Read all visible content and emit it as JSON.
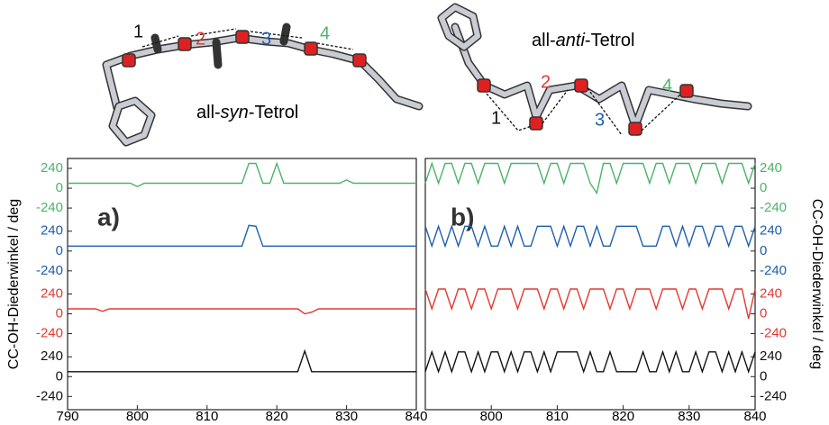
{
  "chart_data": [
    {
      "type": "line",
      "panel_label": "a)",
      "title": [
        "all-",
        "syn",
        "-Tetrol"
      ],
      "ylabel": "CC-OH-Diederwinkel / deg",
      "xlim": [
        790,
        840
      ],
      "xticks": [
        790,
        800,
        810,
        820,
        830,
        840
      ],
      "ylim": [
        -400,
        360
      ],
      "yticks": [
        -240,
        0,
        240
      ],
      "x": [
        790,
        791,
        792,
        793,
        794,
        795,
        796,
        797,
        798,
        799,
        800,
        801,
        802,
        803,
        804,
        805,
        806,
        807,
        808,
        809,
        810,
        811,
        812,
        813,
        814,
        815,
        816,
        817,
        818,
        819,
        820,
        821,
        822,
        823,
        824,
        825,
        826,
        827,
        828,
        829,
        830,
        831,
        832,
        833,
        834,
        835,
        836,
        837,
        838,
        839,
        840
      ],
      "series": [
        {
          "name": "1",
          "color": "#111111",
          "values": [
            60,
            60,
            60,
            60,
            60,
            60,
            60,
            60,
            60,
            60,
            60,
            60,
            60,
            60,
            60,
            60,
            60,
            60,
            60,
            60,
            60,
            60,
            60,
            60,
            60,
            60,
            60,
            60,
            60,
            60,
            60,
            60,
            60,
            60,
            310,
            60,
            60,
            60,
            60,
            60,
            60,
            60,
            60,
            60,
            60,
            60,
            60,
            60,
            60,
            60,
            60
          ]
        },
        {
          "name": "2",
          "color": "#e23a30",
          "values": [
            60,
            60,
            60,
            60,
            60,
            30,
            60,
            60,
            60,
            60,
            60,
            60,
            60,
            60,
            60,
            60,
            60,
            60,
            60,
            60,
            60,
            60,
            60,
            60,
            60,
            60,
            60,
            60,
            60,
            60,
            60,
            60,
            60,
            60,
            0,
            20,
            60,
            60,
            60,
            60,
            60,
            60,
            60,
            60,
            60,
            60,
            60,
            60,
            60,
            60,
            60
          ]
        },
        {
          "name": "3",
          "color": "#1f5fae",
          "values": [
            60,
            60,
            60,
            60,
            60,
            60,
            60,
            60,
            60,
            60,
            60,
            60,
            60,
            60,
            60,
            60,
            60,
            60,
            60,
            60,
            60,
            60,
            60,
            60,
            60,
            60,
            310,
            300,
            60,
            60,
            60,
            60,
            60,
            60,
            60,
            60,
            60,
            60,
            60,
            60,
            60,
            60,
            60,
            60,
            60,
            60,
            60,
            60,
            60,
            60,
            60
          ]
        },
        {
          "name": "4",
          "color": "#4cb46a",
          "values": [
            60,
            60,
            60,
            60,
            60,
            60,
            60,
            60,
            60,
            60,
            20,
            60,
            60,
            60,
            60,
            60,
            60,
            60,
            60,
            60,
            60,
            60,
            60,
            60,
            60,
            60,
            300,
            300,
            60,
            60,
            300,
            60,
            60,
            60,
            60,
            60,
            60,
            60,
            60,
            60,
            100,
            60,
            60,
            60,
            60,
            60,
            60,
            60,
            60,
            60,
            60
          ]
        }
      ]
    },
    {
      "type": "line",
      "panel_label": "b)",
      "title": [
        "all-",
        "anti",
        "-Tetrol"
      ],
      "ylabel": "CC-OH-Diederwinkel / deg",
      "xlim": [
        790,
        840
      ],
      "xticks": [
        800,
        810,
        820,
        830,
        840
      ],
      "ylim": [
        -400,
        360
      ],
      "yticks": [
        -240,
        0,
        240
      ],
      "x": [
        790,
        791,
        792,
        793,
        794,
        795,
        796,
        797,
        798,
        799,
        800,
        801,
        802,
        803,
        804,
        805,
        806,
        807,
        808,
        809,
        810,
        811,
        812,
        813,
        814,
        815,
        816,
        817,
        818,
        819,
        820,
        821,
        822,
        823,
        824,
        825,
        826,
        827,
        828,
        829,
        830,
        831,
        832,
        833,
        834,
        835,
        836,
        837,
        838,
        839,
        840
      ],
      "series": [
        {
          "name": "1",
          "color": "#111111",
          "values": [
            60,
            300,
            60,
            300,
            60,
            300,
            300,
            60,
            300,
            60,
            300,
            300,
            60,
            300,
            60,
            300,
            300,
            60,
            300,
            60,
            300,
            300,
            300,
            300,
            60,
            300,
            60,
            60,
            300,
            60,
            60,
            60,
            60,
            300,
            60,
            60,
            300,
            60,
            300,
            60,
            60,
            300,
            60,
            300,
            300,
            60,
            300,
            60,
            300,
            60,
            300
          ]
        },
        {
          "name": "2",
          "color": "#e23a30",
          "values": [
            300,
            60,
            300,
            300,
            60,
            300,
            300,
            60,
            300,
            300,
            60,
            300,
            300,
            300,
            60,
            300,
            300,
            300,
            60,
            300,
            300,
            60,
            300,
            300,
            60,
            300,
            300,
            300,
            60,
            300,
            300,
            60,
            300,
            300,
            300,
            60,
            300,
            300,
            300,
            60,
            300,
            300,
            60,
            300,
            300,
            300,
            60,
            300,
            300,
            -60,
            300
          ]
        },
        {
          "name": "3",
          "color": "#1f5fae",
          "values": [
            300,
            60,
            300,
            60,
            300,
            60,
            300,
            300,
            60,
            300,
            60,
            60,
            300,
            60,
            300,
            60,
            60,
            300,
            300,
            300,
            60,
            300,
            60,
            300,
            300,
            60,
            300,
            60,
            60,
            300,
            300,
            300,
            300,
            60,
            60,
            60,
            300,
            300,
            60,
            300,
            60,
            300,
            300,
            60,
            300,
            300,
            60,
            300,
            300,
            60,
            300
          ]
        },
        {
          "name": "4",
          "color": "#4cb46a",
          "values": [
            60,
            300,
            60,
            300,
            300,
            60,
            300,
            300,
            60,
            300,
            300,
            300,
            60,
            300,
            300,
            300,
            300,
            300,
            60,
            300,
            300,
            60,
            300,
            300,
            300,
            60,
            -60,
            300,
            300,
            60,
            300,
            300,
            300,
            300,
            60,
            300,
            300,
            60,
            300,
            300,
            300,
            60,
            300,
            300,
            300,
            60,
            300,
            300,
            300,
            60,
            300
          ]
        }
      ]
    }
  ]
}
